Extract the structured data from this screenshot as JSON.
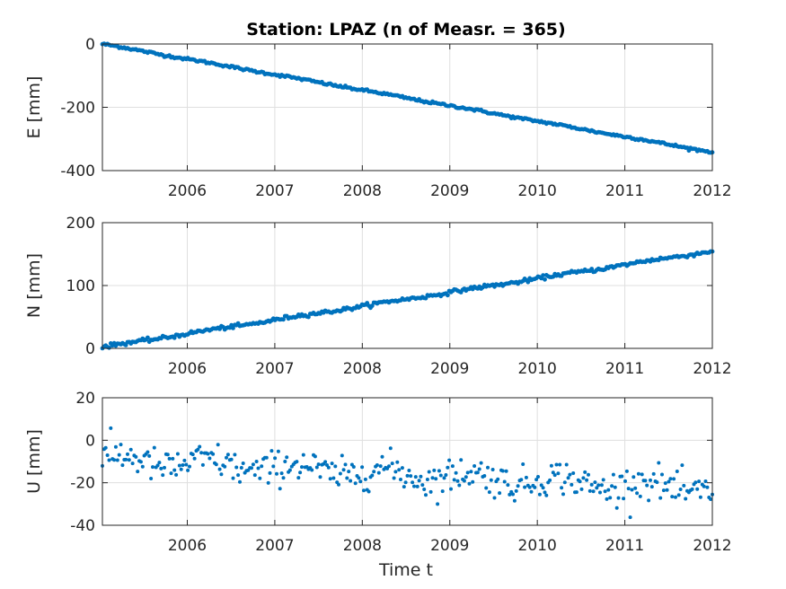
{
  "title": "Station: LPAZ (n of Measr. = 365)",
  "xlabel": "Time t",
  "series_color": "#0072bd",
  "chart_data": [
    {
      "type": "scatter",
      "name": "E",
      "ylabel": "E [mm]",
      "xlim": [
        2005.03,
        2012.0
      ],
      "ylim": [
        -400,
        0
      ],
      "yticks": [
        0,
        -200,
        -400
      ],
      "xticks": [
        2006,
        2007,
        2008,
        2009,
        2010,
        2011,
        2012
      ],
      "grid": true,
      "trend": {
        "start": [
          2005.03,
          0
        ],
        "end": [
          2012.0,
          -342
        ]
      },
      "noise_mm": 2
    },
    {
      "type": "scatter",
      "name": "N",
      "ylabel": "N [mm]",
      "xlim": [
        2005.03,
        2012.0
      ],
      "ylim": [
        0,
        200
      ],
      "yticks": [
        200,
        100,
        0
      ],
      "xticks": [
        2006,
        2007,
        2008,
        2009,
        2010,
        2011,
        2012
      ],
      "grid": true,
      "trend": {
        "start": [
          2005.03,
          2
        ],
        "end": [
          2012.0,
          155
        ]
      },
      "noise_mm": 1.5
    },
    {
      "type": "scatter",
      "name": "U",
      "ylabel": "U [mm]",
      "xlim": [
        2005.03,
        2012.0
      ],
      "ylim": [
        -40,
        20
      ],
      "yticks": [
        20,
        0,
        -20,
        -40
      ],
      "xticks": [
        2006,
        2007,
        2008,
        2009,
        2010,
        2011,
        2012
      ],
      "grid": true,
      "trend": {
        "start": [
          2005.03,
          -9
        ],
        "end": [
          2012.0,
          -23
        ]
      },
      "noise_mm": 4
    }
  ]
}
